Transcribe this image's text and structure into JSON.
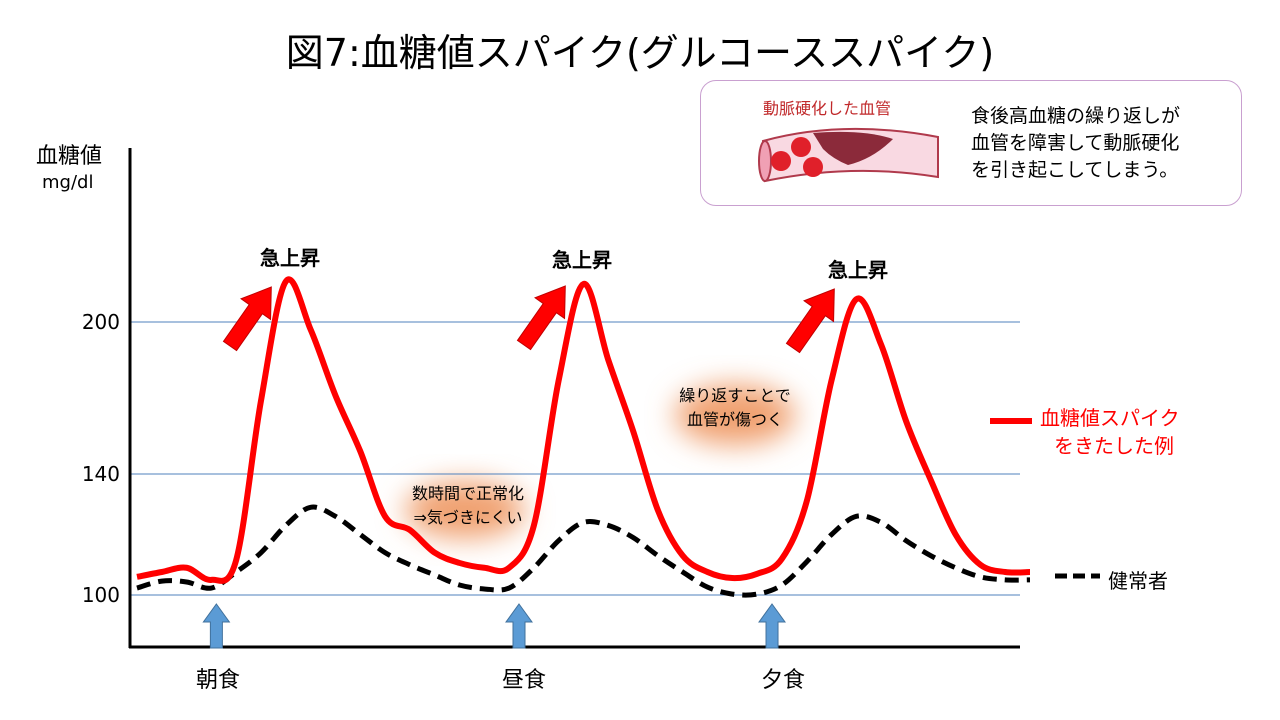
{
  "title": "図7:血糖値スパイク(グルコーススパイク)",
  "info_box": {
    "vessel_label": "動脈硬化した血管",
    "text_lines": [
      "食後高血糖の繰り返しが",
      "血管を障害して動脈硬化",
      "を引き起こしてしまう。"
    ]
  },
  "annotations": {
    "spike_labels": [
      "急上昇",
      "急上昇",
      "急上昇"
    ],
    "normalize_note": [
      "数時間で正常化",
      "⇒気づきにくい"
    ],
    "damage_note": [
      "繰り返すことで",
      "血管が傷つく"
    ]
  },
  "chart_data": {
    "type": "line",
    "ylabel": "血糖値",
    "yunit": "mg/dl",
    "yticks": [
      100,
      140,
      200
    ],
    "grid": true,
    "meals": [
      {
        "label": "朝食",
        "index": 3.2
      },
      {
        "label": "昼食",
        "index": 15.4
      },
      {
        "label": "夕食",
        "index": 25.6
      }
    ],
    "legend_placement": "right",
    "series": [
      {
        "name": "血糖値スパイクをきたした例",
        "legend_lines": [
          "血糖値スパイク",
          "をきたした例"
        ],
        "color": "#ff0000",
        "style": "solid",
        "values": [
          106,
          107.6,
          109,
          105,
          111.6,
          169,
          216,
          197,
          171,
          149,
          126,
          121.5,
          114,
          110.6,
          109,
          109,
          123,
          177,
          215,
          185,
          157,
          128,
          113,
          107.6,
          105.6,
          107,
          112,
          131,
          177,
          209,
          191,
          161,
          138,
          120,
          110,
          107.6,
          107.6
        ]
      },
      {
        "name": "健常者",
        "legend_lines": [
          "健常者"
        ],
        "color": "#000000",
        "style": "dashed",
        "values": [
          102.3,
          104.6,
          104.3,
          102.3,
          107.6,
          114,
          123,
          129,
          126,
          120,
          114,
          110,
          106.6,
          103.3,
          102,
          102.3,
          109,
          118,
          124,
          123,
          119,
          113,
          107.6,
          102.6,
          100.3,
          100.3,
          103.3,
          111,
          120,
          126,
          124,
          118,
          113,
          109,
          106,
          105,
          105
        ]
      }
    ]
  },
  "colors": {
    "spike": "#ff0000",
    "meal_arrow": "#5b9bd5",
    "grid": "#4f81bd",
    "halo": "#f0a070"
  }
}
